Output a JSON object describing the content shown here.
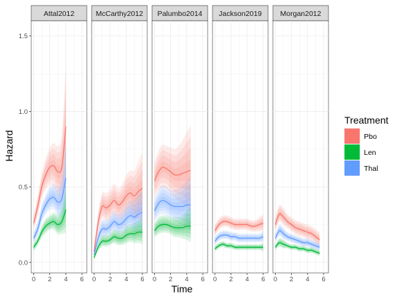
{
  "chart_data": {
    "type": "line",
    "title": "",
    "xlabel": "Time",
    "ylabel": "Hazard",
    "xlim": [
      -0.3,
      6.6
    ],
    "ylim": [
      -0.07,
      1.6
    ],
    "x_ticks": [
      0,
      2,
      4,
      6
    ],
    "y_ticks": [
      0.0,
      0.5,
      1.0,
      1.5
    ],
    "y_tick_labels": [
      "0.0",
      "0.5",
      "1.0",
      "1.5"
    ],
    "grid": true,
    "legend": {
      "title": "Treatment",
      "position": "right",
      "entries": [
        {
          "name": "Pbo",
          "color": "#F8766D"
        },
        {
          "name": "Len",
          "color": "#00BA38"
        },
        {
          "name": "Thal",
          "color": "#619CFF"
        }
      ]
    },
    "panels": [
      {
        "name": "Attal2012",
        "series": [
          {
            "name": "Pbo",
            "x": [
              0,
              0.5,
              1,
              1.5,
              2,
              2.5,
              3,
              3.5,
              4
            ],
            "y": [
              0.26,
              0.37,
              0.5,
              0.58,
              0.63,
              0.64,
              0.6,
              0.63,
              0.9
            ],
            "spread": [
              0.05,
              0.07,
              0.09,
              0.11,
              0.13,
              0.15,
              0.17,
              0.22,
              0.42
            ]
          },
          {
            "name": "Thal",
            "x": [
              0,
              0.5,
              1,
              1.5,
              2,
              2.5,
              3,
              3.5,
              4
            ],
            "y": [
              0.16,
              0.22,
              0.32,
              0.38,
              0.42,
              0.43,
              0.4,
              0.42,
              0.56
            ],
            "spread": [
              0.04,
              0.05,
              0.06,
              0.07,
              0.08,
              0.09,
              0.1,
              0.14,
              0.26
            ]
          },
          {
            "name": "Len",
            "x": [
              0,
              0.5,
              1,
              1.5,
              2,
              2.5,
              3,
              3.5,
              4
            ],
            "y": [
              0.1,
              0.14,
              0.2,
              0.24,
              0.26,
              0.27,
              0.25,
              0.27,
              0.35
            ],
            "spread": [
              0.03,
              0.03,
              0.04,
              0.05,
              0.05,
              0.06,
              0.07,
              0.09,
              0.17
            ]
          }
        ]
      },
      {
        "name": "McCarthy2012",
        "series": [
          {
            "name": "Pbo",
            "x": [
              0,
              0.5,
              1,
              1.5,
              2,
              2.5,
              3,
              3.5,
              4,
              4.5,
              5,
              5.5,
              6
            ],
            "y": [
              0.07,
              0.26,
              0.37,
              0.36,
              0.38,
              0.41,
              0.38,
              0.4,
              0.44,
              0.46,
              0.44,
              0.47,
              0.49
            ],
            "spread": [
              0.03,
              0.07,
              0.09,
              0.1,
              0.1,
              0.11,
              0.11,
              0.12,
              0.14,
              0.15,
              0.17,
              0.2,
              0.24
            ]
          },
          {
            "name": "Thal",
            "x": [
              0,
              0.5,
              1,
              1.5,
              2,
              2.5,
              3,
              3.5,
              4,
              4.5,
              5,
              5.5,
              6
            ],
            "y": [
              0.05,
              0.16,
              0.22,
              0.22,
              0.24,
              0.27,
              0.25,
              0.26,
              0.29,
              0.31,
              0.3,
              0.32,
              0.33
            ],
            "spread": [
              0.02,
              0.05,
              0.06,
              0.06,
              0.07,
              0.07,
              0.07,
              0.08,
              0.09,
              0.1,
              0.11,
              0.13,
              0.15
            ]
          },
          {
            "name": "Len",
            "x": [
              0,
              0.5,
              1,
              1.5,
              2,
              2.5,
              3,
              3.5,
              4,
              4.5,
              5,
              5.5,
              6
            ],
            "y": [
              0.03,
              0.1,
              0.14,
              0.14,
              0.15,
              0.17,
              0.16,
              0.16,
              0.18,
              0.19,
              0.19,
              0.2,
              0.2
            ],
            "spread": [
              0.01,
              0.03,
              0.04,
              0.04,
              0.04,
              0.05,
              0.05,
              0.05,
              0.06,
              0.06,
              0.07,
              0.08,
              0.09
            ]
          }
        ]
      },
      {
        "name": "Palumbo2014",
        "series": [
          {
            "name": "Pbo",
            "x": [
              0,
              0.5,
              1,
              1.5,
              2,
              2.5,
              3,
              3.5,
              4,
              4.5
            ],
            "y": [
              0.54,
              0.6,
              0.63,
              0.62,
              0.6,
              0.58,
              0.58,
              0.59,
              0.6,
              0.61
            ],
            "spread": [
              0.12,
              0.14,
              0.15,
              0.15,
              0.16,
              0.17,
              0.19,
              0.22,
              0.26,
              0.3
            ]
          },
          {
            "name": "Thal",
            "x": [
              0,
              0.5,
              1,
              1.5,
              2,
              2.5,
              3,
              3.5,
              4,
              4.5
            ],
            "y": [
              0.34,
              0.39,
              0.41,
              0.4,
              0.38,
              0.37,
              0.37,
              0.37,
              0.38,
              0.38
            ],
            "spread": [
              0.08,
              0.09,
              0.1,
              0.1,
              0.1,
              0.11,
              0.12,
              0.14,
              0.16,
              0.19
            ]
          },
          {
            "name": "Len",
            "x": [
              0,
              0.5,
              1,
              1.5,
              2,
              2.5,
              3,
              3.5,
              4,
              4.5
            ],
            "y": [
              0.21,
              0.24,
              0.25,
              0.25,
              0.24,
              0.23,
              0.23,
              0.23,
              0.24,
              0.24
            ],
            "spread": [
              0.05,
              0.06,
              0.06,
              0.06,
              0.06,
              0.07,
              0.07,
              0.08,
              0.1,
              0.12
            ]
          }
        ]
      },
      {
        "name": "Jackson2019",
        "series": [
          {
            "name": "Pbo",
            "x": [
              0,
              0.5,
              1,
              1.5,
              2,
              2.5,
              3,
              3.5,
              4,
              4.5,
              5,
              5.5,
              6
            ],
            "y": [
              0.21,
              0.25,
              0.27,
              0.27,
              0.26,
              0.25,
              0.25,
              0.25,
              0.25,
              0.24,
              0.24,
              0.25,
              0.26
            ],
            "spread": [
              0.04,
              0.04,
              0.04,
              0.04,
              0.04,
              0.04,
              0.04,
              0.04,
              0.04,
              0.04,
              0.04,
              0.05,
              0.06
            ]
          },
          {
            "name": "Thal",
            "x": [
              0,
              0.5,
              1,
              1.5,
              2,
              2.5,
              3,
              3.5,
              4,
              4.5,
              5,
              5.5,
              6
            ],
            "y": [
              0.14,
              0.17,
              0.18,
              0.18,
              0.17,
              0.17,
              0.16,
              0.16,
              0.16,
              0.16,
              0.16,
              0.16,
              0.17
            ],
            "spread": [
              0.03,
              0.03,
              0.03,
              0.03,
              0.03,
              0.03,
              0.03,
              0.03,
              0.03,
              0.03,
              0.03,
              0.03,
              0.04
            ]
          },
          {
            "name": "Len",
            "x": [
              0,
              0.5,
              1,
              1.5,
              2,
              2.5,
              3,
              3.5,
              4,
              4.5,
              5,
              5.5,
              6
            ],
            "y": [
              0.09,
              0.11,
              0.12,
              0.11,
              0.11,
              0.1,
              0.1,
              0.1,
              0.1,
              0.1,
              0.1,
              0.1,
              0.1
            ],
            "spread": [
              0.02,
              0.02,
              0.02,
              0.02,
              0.02,
              0.02,
              0.02,
              0.02,
              0.02,
              0.02,
              0.02,
              0.02,
              0.03
            ]
          }
        ]
      },
      {
        "name": "Morgan2012",
        "series": [
          {
            "name": "Pbo",
            "x": [
              0,
              0.5,
              1,
              1.5,
              2,
              2.5,
              3,
              3.5,
              4,
              4.5,
              5,
              5.5
            ],
            "y": [
              0.25,
              0.32,
              0.3,
              0.27,
              0.25,
              0.23,
              0.22,
              0.21,
              0.2,
              0.19,
              0.17,
              0.15
            ],
            "spread": [
              0.05,
              0.06,
              0.06,
              0.05,
              0.05,
              0.05,
              0.05,
              0.05,
              0.05,
              0.05,
              0.05,
              0.05
            ]
          },
          {
            "name": "Thal",
            "x": [
              0,
              0.5,
              1,
              1.5,
              2,
              2.5,
              3,
              3.5,
              4,
              4.5,
              5,
              5.5
            ],
            "y": [
              0.16,
              0.21,
              0.19,
              0.17,
              0.16,
              0.15,
              0.14,
              0.13,
              0.13,
              0.12,
              0.11,
              0.1
            ],
            "spread": [
              0.03,
              0.04,
              0.04,
              0.03,
              0.03,
              0.03,
              0.03,
              0.03,
              0.03,
              0.03,
              0.03,
              0.03
            ]
          },
          {
            "name": "Len",
            "x": [
              0,
              0.5,
              1,
              1.5,
              2,
              2.5,
              3,
              3.5,
              4,
              4.5,
              5,
              5.5
            ],
            "y": [
              0.1,
              0.13,
              0.12,
              0.11,
              0.1,
              0.1,
              0.09,
              0.09,
              0.08,
              0.08,
              0.07,
              0.06
            ],
            "spread": [
              0.02,
              0.03,
              0.03,
              0.02,
              0.02,
              0.02,
              0.02,
              0.02,
              0.02,
              0.02,
              0.02,
              0.02
            ]
          }
        ]
      }
    ]
  }
}
